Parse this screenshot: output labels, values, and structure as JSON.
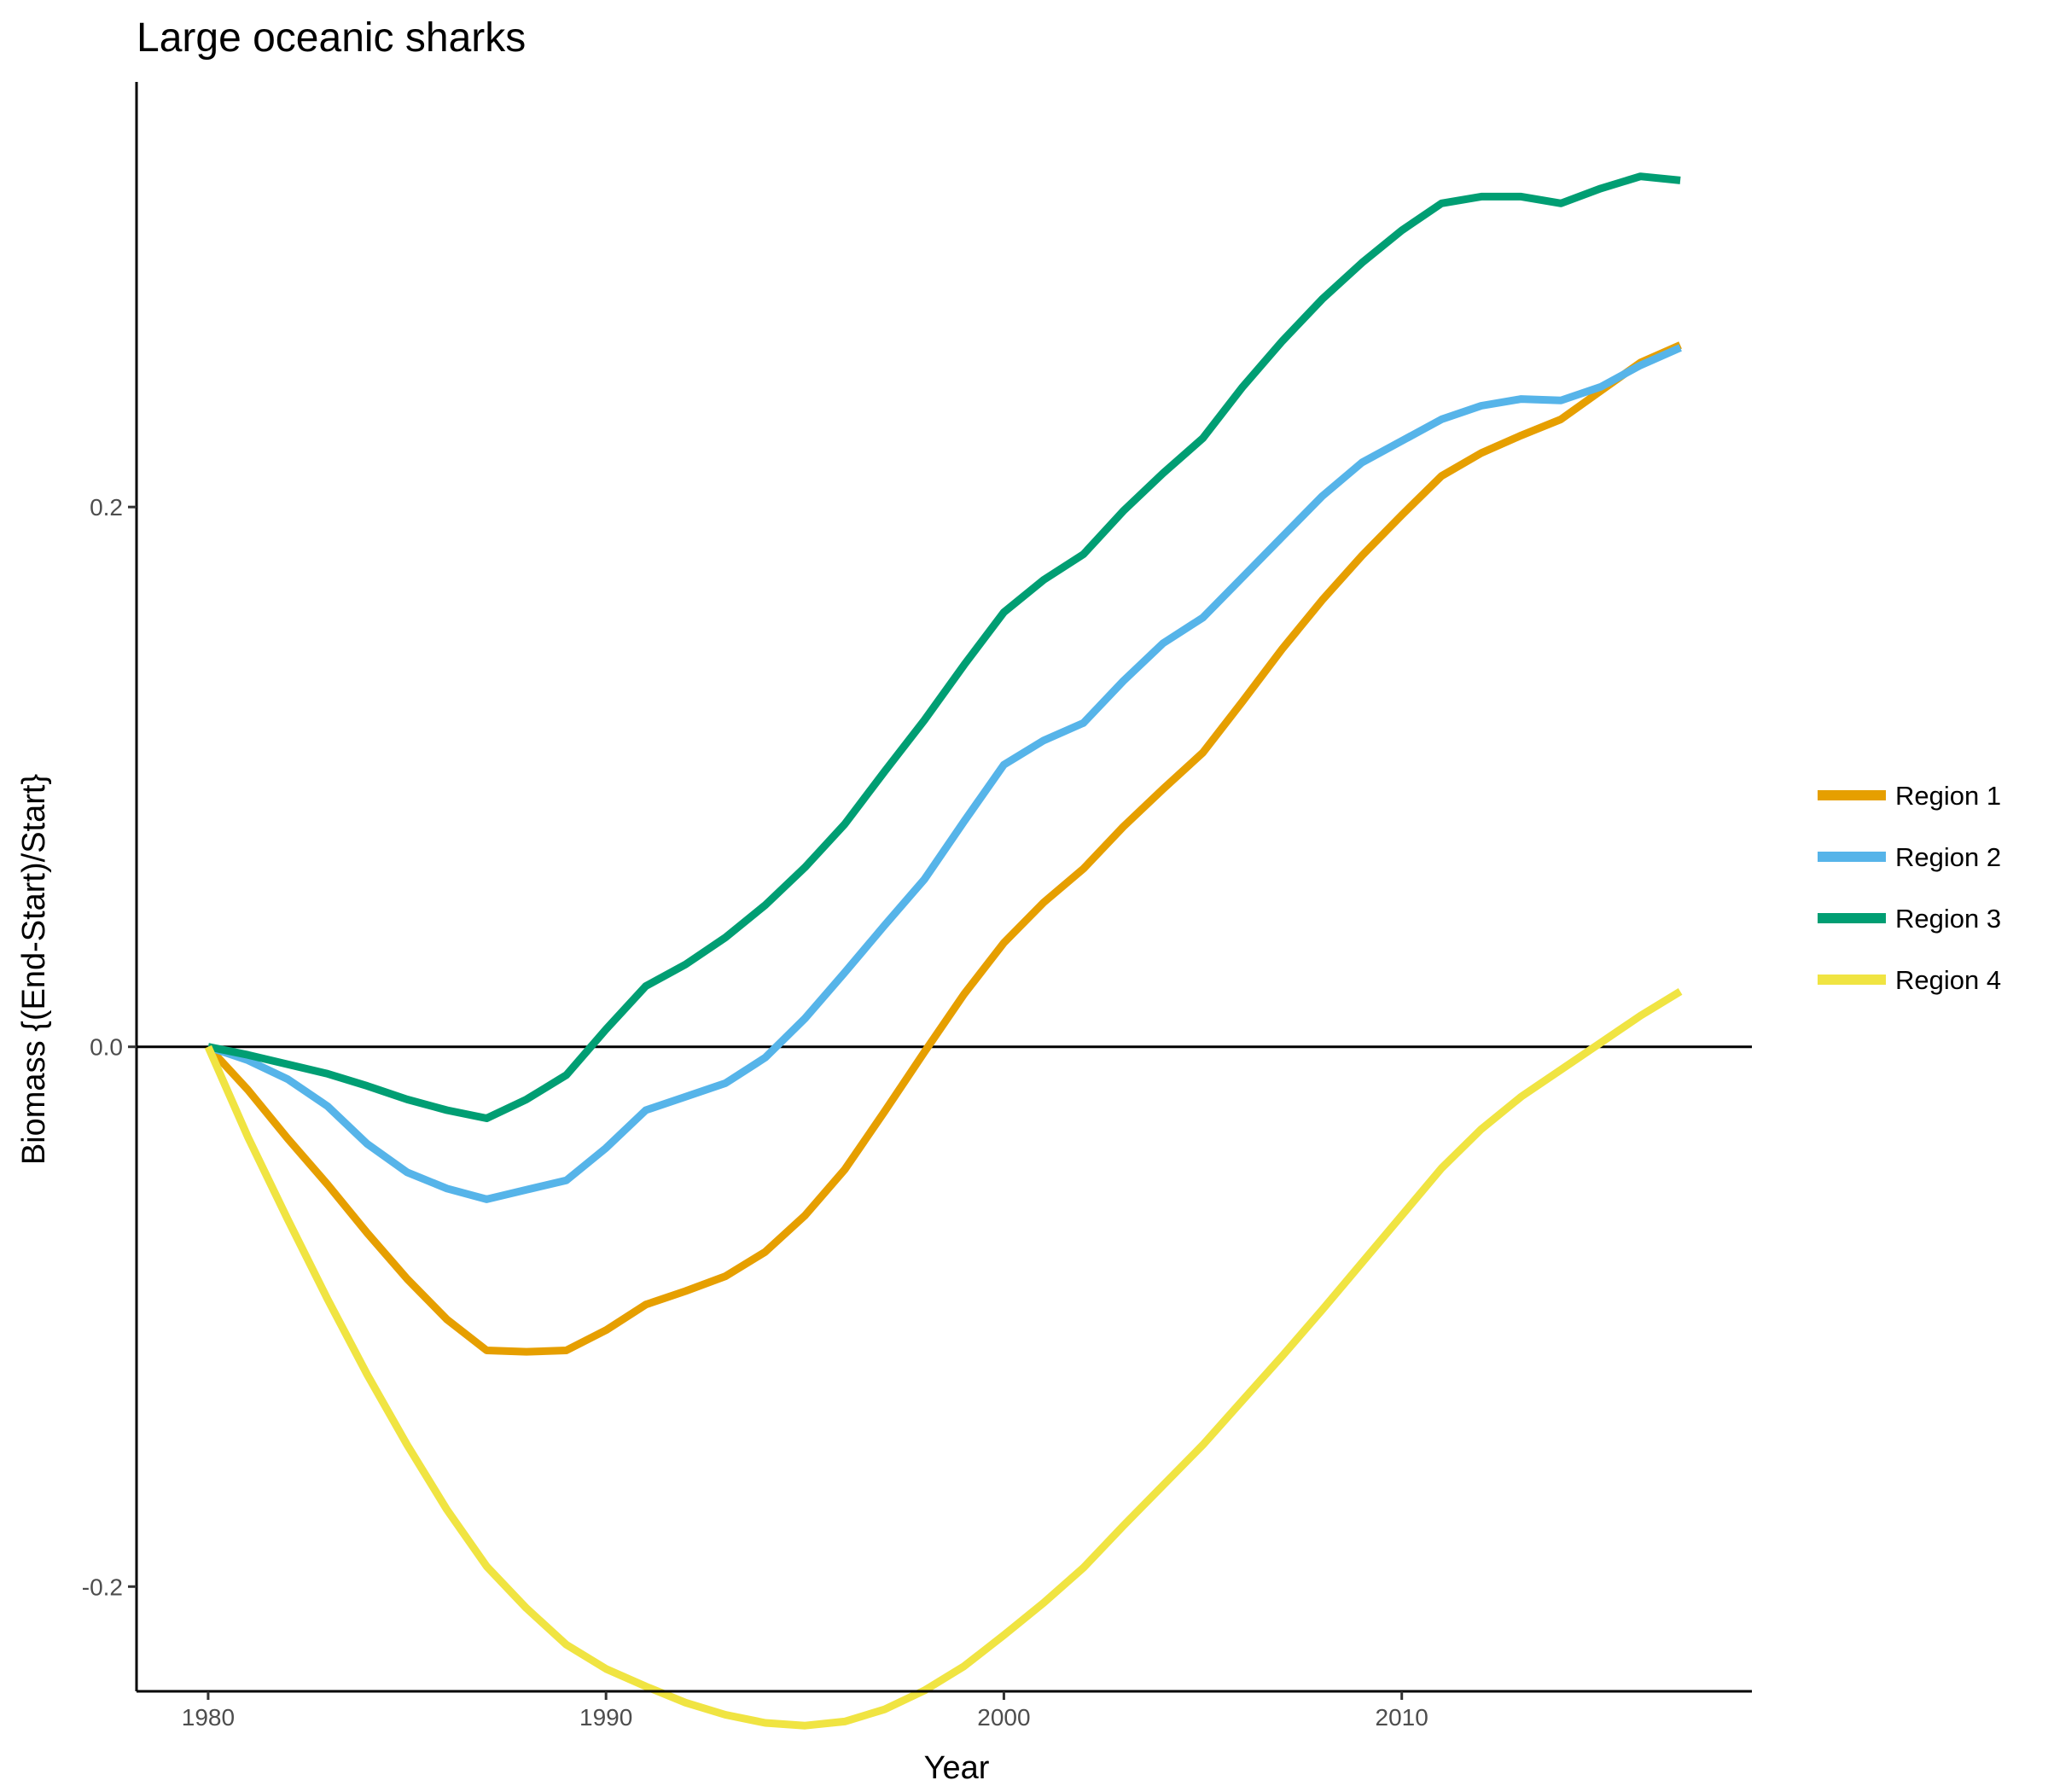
{
  "chart_data": {
    "type": "line",
    "title": "Large oceanic sharks",
    "xlabel": "Year",
    "ylabel": "Biomass {(End-Start)/Start}",
    "xlim": [
      1978.2,
      2018.8
    ],
    "ylim": [
      -0.2388,
      0.3575
    ],
    "x_ticks": [
      1980,
      1990,
      2000,
      2010
    ],
    "x_tick_labels": [
      "1980",
      "1990",
      "2000",
      "2010"
    ],
    "y_ticks": [
      -0.2,
      0.0,
      0.2
    ],
    "y_tick_labels": [
      "-0.2",
      "0.0",
      "0.2"
    ],
    "reference_line_y": 0,
    "grid": false,
    "legend_position": "right",
    "series": [
      {
        "name": "Region 1",
        "color": "#E69F00",
        "points": [
          [
            1980,
            0.0
          ],
          [
            1981,
            -0.016
          ],
          [
            1982,
            -0.034
          ],
          [
            1983,
            -0.051
          ],
          [
            1984,
            -0.069
          ],
          [
            1985,
            -0.086
          ],
          [
            1986,
            -0.101
          ],
          [
            1987,
            -0.1125
          ],
          [
            1988,
            -0.113
          ],
          [
            1989,
            -0.1125
          ],
          [
            1990,
            -0.105
          ],
          [
            1991,
            -0.0955
          ],
          [
            1992,
            -0.0905
          ],
          [
            1993,
            -0.085
          ],
          [
            1994,
            -0.076
          ],
          [
            1995,
            -0.0625
          ],
          [
            1996,
            -0.0455
          ],
          [
            1997,
            -0.024
          ],
          [
            1998,
            -0.002
          ],
          [
            1999,
            0.0195
          ],
          [
            2000,
            0.0385
          ],
          [
            2001,
            0.0535
          ],
          [
            2002,
            0.066
          ],
          [
            2003,
            0.0815
          ],
          [
            2004,
            0.0955
          ],
          [
            2005,
            0.109
          ],
          [
            2006,
            0.128
          ],
          [
            2007,
            0.1475
          ],
          [
            2008,
            0.1655
          ],
          [
            2009,
            0.182
          ],
          [
            2010,
            0.197
          ],
          [
            2011,
            0.2115
          ],
          [
            2012,
            0.22
          ],
          [
            2013,
            0.2265
          ],
          [
            2014,
            0.2325
          ],
          [
            2015,
            0.243
          ],
          [
            2016,
            0.2535
          ],
          [
            2017,
            0.26
          ]
        ]
      },
      {
        "name": "Region 2",
        "color": "#56B4E9",
        "points": [
          [
            1980,
            0.0
          ],
          [
            1981,
            -0.005
          ],
          [
            1982,
            -0.012
          ],
          [
            1983,
            -0.022
          ],
          [
            1984,
            -0.036
          ],
          [
            1985,
            -0.0465
          ],
          [
            1986,
            -0.0525
          ],
          [
            1987,
            -0.0565
          ],
          [
            1988,
            -0.053
          ],
          [
            1989,
            -0.0495
          ],
          [
            1990,
            -0.0375
          ],
          [
            1991,
            -0.0235
          ],
          [
            1992,
            -0.0185
          ],
          [
            1993,
            -0.0135
          ],
          [
            1994,
            -0.004
          ],
          [
            1995,
            0.0105
          ],
          [
            1996,
            0.0275
          ],
          [
            1997,
            0.045
          ],
          [
            1998,
            0.062
          ],
          [
            1999,
            0.0835
          ],
          [
            2000,
            0.1045
          ],
          [
            2001,
            0.1135
          ],
          [
            2002,
            0.12
          ],
          [
            2003,
            0.1355
          ],
          [
            2004,
            0.1495
          ],
          [
            2005,
            0.159
          ],
          [
            2006,
            0.174
          ],
          [
            2007,
            0.189
          ],
          [
            2008,
            0.204
          ],
          [
            2009,
            0.2165
          ],
          [
            2010,
            0.2245
          ],
          [
            2011,
            0.2325
          ],
          [
            2012,
            0.2375
          ],
          [
            2013,
            0.24
          ],
          [
            2014,
            0.2395
          ],
          [
            2015,
            0.2445
          ],
          [
            2016,
            0.2525
          ],
          [
            2017,
            0.259
          ]
        ]
      },
      {
        "name": "Region 3",
        "color": "#009E73",
        "points": [
          [
            1980,
            0.0
          ],
          [
            1981,
            -0.003
          ],
          [
            1982,
            -0.0065
          ],
          [
            1983,
            -0.01
          ],
          [
            1984,
            -0.0145
          ],
          [
            1985,
            -0.0195
          ],
          [
            1986,
            -0.0235
          ],
          [
            1987,
            -0.0265
          ],
          [
            1988,
            -0.0195
          ],
          [
            1989,
            -0.0105
          ],
          [
            1990,
            0.0065
          ],
          [
            1991,
            0.0225
          ],
          [
            1992,
            0.0305
          ],
          [
            1993,
            0.0405
          ],
          [
            1994,
            0.0525
          ],
          [
            1995,
            0.0665
          ],
          [
            1996,
            0.0825
          ],
          [
            1997,
            0.102
          ],
          [
            1998,
            0.121
          ],
          [
            1999,
            0.1415
          ],
          [
            2000,
            0.161
          ],
          [
            2001,
            0.173
          ],
          [
            2002,
            0.1825
          ],
          [
            2003,
            0.1985
          ],
          [
            2004,
            0.2125
          ],
          [
            2005,
            0.2255
          ],
          [
            2006,
            0.2445
          ],
          [
            2007,
            0.2615
          ],
          [
            2008,
            0.277
          ],
          [
            2009,
            0.2905
          ],
          [
            2010,
            0.3025
          ],
          [
            2011,
            0.3125
          ],
          [
            2012,
            0.315
          ],
          [
            2013,
            0.315
          ],
          [
            2014,
            0.3125
          ],
          [
            2015,
            0.318
          ],
          [
            2016,
            0.3225
          ],
          [
            2017,
            0.321
          ]
        ]
      },
      {
        "name": "Region 4",
        "color": "#F0E442",
        "points": [
          [
            1980,
            0.0
          ],
          [
            1981,
            -0.0335
          ],
          [
            1982,
            -0.064
          ],
          [
            1983,
            -0.0935
          ],
          [
            1984,
            -0.1215
          ],
          [
            1985,
            -0.1475
          ],
          [
            1986,
            -0.1715
          ],
          [
            1987,
            -0.1925
          ],
          [
            1988,
            -0.208
          ],
          [
            1989,
            -0.2215
          ],
          [
            1990,
            -0.2305
          ],
          [
            1991,
            -0.237
          ],
          [
            1992,
            -0.243
          ],
          [
            1993,
            -0.2475
          ],
          [
            1994,
            -0.2505
          ],
          [
            1995,
            -0.2515
          ],
          [
            1996,
            -0.25
          ],
          [
            1997,
            -0.2455
          ],
          [
            1998,
            -0.2385
          ],
          [
            1999,
            -0.2295
          ],
          [
            2000,
            -0.218
          ],
          [
            2001,
            -0.206
          ],
          [
            2002,
            -0.193
          ],
          [
            2003,
            -0.1775
          ],
          [
            2004,
            -0.1625
          ],
          [
            2005,
            -0.1475
          ],
          [
            2006,
            -0.131
          ],
          [
            2007,
            -0.1145
          ],
          [
            2008,
            -0.0975
          ],
          [
            2009,
            -0.08
          ],
          [
            2010,
            -0.0625
          ],
          [
            2011,
            -0.045
          ],
          [
            2012,
            -0.0305
          ],
          [
            2013,
            -0.0185
          ],
          [
            2014,
            -0.0085
          ],
          [
            2015,
            0.0015
          ],
          [
            2016,
            0.0115
          ],
          [
            2017,
            0.0205
          ]
        ]
      }
    ]
  }
}
